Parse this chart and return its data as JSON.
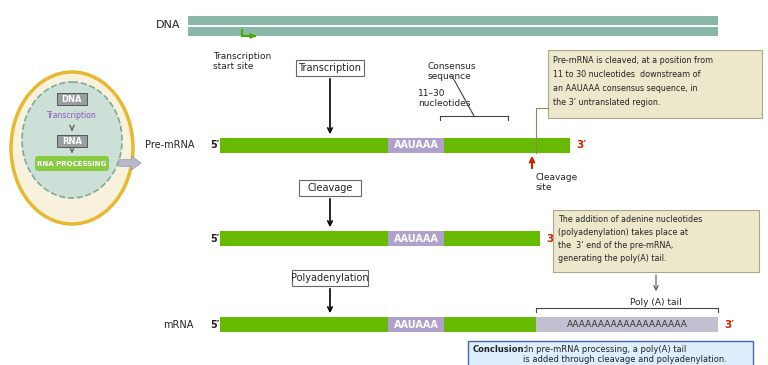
{
  "bg_color": "#ffffff",
  "cell_outer_color": "#e8b830",
  "cell_inner_color": "#cde0d8",
  "cell_inner_border_color": "#7aaa98",
  "dna_bar_color": "#8ab8a8",
  "rna_box_color": "#999ea0",
  "rna_processing_color": "#88cc44",
  "arrow_green_color": "#44aa00",
  "mRNA_bar_color": "#66bb00",
  "aauaaa_bar_color": "#b0a0cc",
  "polyA_bar_color": "#c0c0d0",
  "box_fill_color": "#ede8cc",
  "conclusion_fill_color": "#ddeeff",
  "conclusion_border_color": "#4466aa",
  "red_color": "#cc2200",
  "dark_text": "#222222",
  "purple_text": "#8855bb",
  "dna_label": "DNA",
  "transcription_label": "Transcription",
  "rna_label": "RNA",
  "rna_processing_label": "RNA PROCESSING",
  "main_dna_label": "DNA",
  "transcription_start_label": "Transcription\nstart site",
  "transcription_box_label": "Transcription",
  "consensus_label": "Consensus\nsequence",
  "nucleotides_label": "11–30\nnucleotides",
  "cleavage_label": "Cleavage",
  "cleavage_site_label": "Cleavage\nsite",
  "polyadenylation_label": "Polyadenylation",
  "poly_a_tail_label": "Poly (A) tail",
  "mrna_label": "mRNA",
  "premrna_label": "Pre-mRNA",
  "aauaaa_text": "AAUAAA",
  "five_prime": "5′",
  "three_prime": "3′",
  "poly_a_text": "AAAAAAAAAAAAAAAAAAA",
  "callout1_line1": "Pre-mRNA is cleaved, at a position from",
  "callout1_line2": "11 to 30 nucleotides  downstream of",
  "callout1_line3": "an AAUAAA consensus sequence, in",
  "callout1_line4": "the 3’ untranslated region.",
  "callout2_line1": "The addition of adenine nucleotides",
  "callout2_line2": "(polyadenylation) takes place at",
  "callout2_line3": "the  3’ end of the pre-mRNA,",
  "callout2_line4": "generating the poly(A) tail.",
  "conclusion_bold": "Conclusion:",
  "conclusion_rest": " In pre-mRNA processing, a poly(A) tail\nis added through cleavage and polyadenylation."
}
